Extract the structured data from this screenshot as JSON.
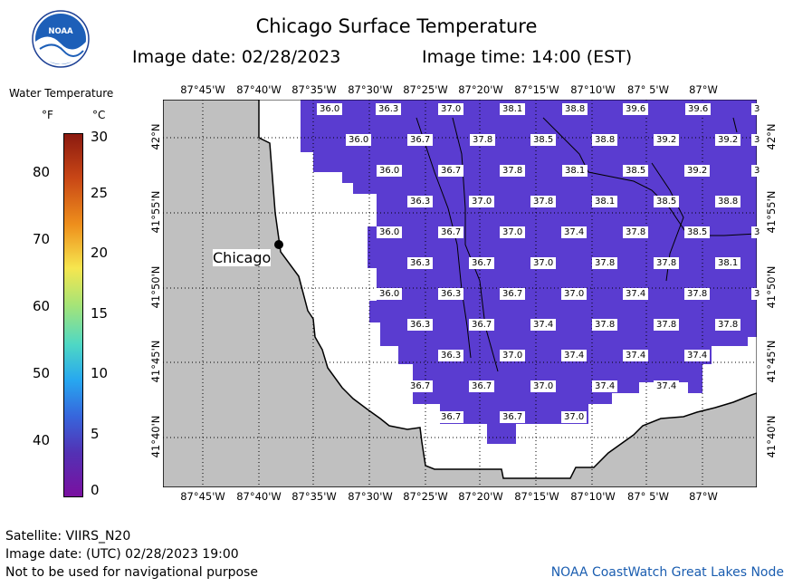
{
  "title": "Chicago Surface Temperature",
  "image_date_line": "Image date: 02/28/2023",
  "image_time_line": "Image time: 14:00 (EST)",
  "legend": {
    "title": "Water Temperature",
    "unit_f": "°F",
    "unit_c": "°C",
    "f_ticks": [
      "80",
      "70",
      "60",
      "50",
      "40"
    ],
    "c_ticks": [
      "30",
      "25",
      "20",
      "15",
      "10",
      "5",
      "0"
    ]
  },
  "map": {
    "top_lon_labels": [
      "87°45'W",
      "87°40'W",
      "87°35'W",
      "87°30'W",
      "87°25'W",
      "87°20'W",
      "87°15'W",
      "87°10'W",
      "87° 5'W",
      "87°W"
    ],
    "bottom_lon_labels": [
      "87°45'W",
      "87°40'W",
      "87°35'W",
      "87°30'W",
      "87°25'W",
      "87°20'W",
      "87°15'W",
      "87°10'W",
      "87° 5'W",
      "87°W"
    ],
    "lat_labels": [
      "42°N",
      "41°55'N",
      "41°50'N",
      "41°45'N",
      "41°40'N"
    ],
    "city_label": "Chicago",
    "colors": {
      "land": "#c0c0c0",
      "water_temp": "#5a3cd0",
      "no_data": "#ffffff"
    },
    "temperature_labels": [
      {
        "row": 1,
        "values": [
          "36.0",
          "36.3",
          "37.0",
          "38.1",
          "38.8",
          "39.6",
          "39.6",
          "3"
        ]
      },
      {
        "row": 2,
        "values": [
          "36.0",
          "36.7",
          "37.8",
          "38.5",
          "38.8",
          "39.2",
          "39.2",
          "3"
        ]
      },
      {
        "row": 3,
        "values": [
          "36.0",
          "36.7",
          "37.8",
          "38.1",
          "38.5",
          "39.2",
          "3"
        ]
      },
      {
        "row": 4,
        "values": [
          "36.3",
          "37.0",
          "37.8",
          "38.1",
          "38.5",
          "38.8"
        ]
      },
      {
        "row": 5,
        "values": [
          "36.0",
          "36.7",
          "37.0",
          "37.4",
          "37.8",
          "38.5",
          "3"
        ]
      },
      {
        "row": 6,
        "values": [
          "36.3",
          "36.7",
          "37.0",
          "37.8",
          "37.8",
          "38.1"
        ]
      },
      {
        "row": 7,
        "values": [
          "36.0",
          "36.3",
          "36.7",
          "37.0",
          "37.4",
          "37.8",
          "3"
        ]
      },
      {
        "row": 8,
        "values": [
          "36.3",
          "36.7",
          "37.4",
          "37.8",
          "37.8",
          "37.8"
        ]
      },
      {
        "row": 9,
        "values": [
          "36.3",
          "37.0",
          "37.4",
          "37.4",
          "37.4"
        ]
      },
      {
        "row": 10,
        "values": [
          "36.7",
          "36.7",
          "37.0",
          "37.4",
          "37.4"
        ]
      },
      {
        "row": 11,
        "values": [
          "36.7",
          "36.7",
          "37.0"
        ]
      }
    ]
  },
  "footer": {
    "satellite": "Satellite: VIIRS_N20",
    "utc_date": "Image date: (UTC) 02/28/2023  19:00",
    "disclaimer": "Not to be used for navigational purpose",
    "credit": "NOAA CoastWatch Great Lakes Node"
  }
}
